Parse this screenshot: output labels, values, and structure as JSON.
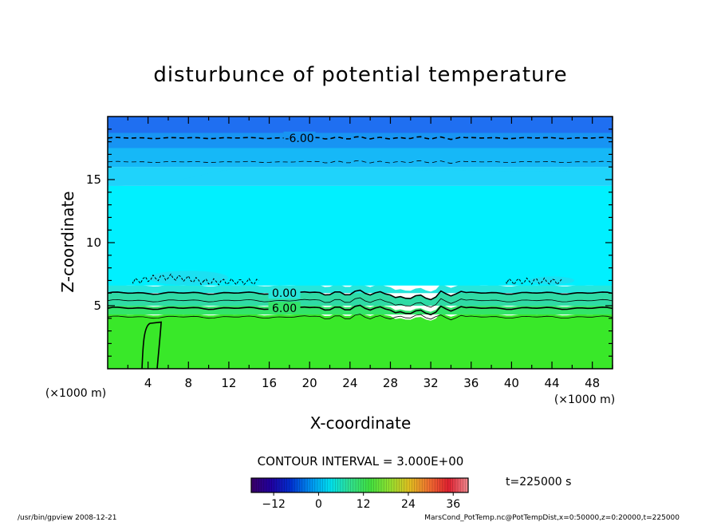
{
  "chart_data": {
    "type": "heatmap",
    "title": "disturbunce of potential temperature",
    "xlabel": "X-coordinate",
    "ylabel": "Z-coordinate",
    "x_unit_left": "(×1000 m)",
    "x_unit_right": "(×1000 m)",
    "xlim": [
      0,
      50
    ],
    "ylim": [
      0,
      20
    ],
    "x_ticks": [
      4,
      8,
      12,
      16,
      20,
      24,
      28,
      32,
      36,
      40,
      44,
      48
    ],
    "y_ticks": [
      5,
      10,
      15
    ],
    "x_tick_labels": [
      "4",
      "8",
      "12",
      "16",
      "20",
      "24",
      "28",
      "32",
      "36",
      "40",
      "44",
      "48"
    ],
    "y_tick_labels": [
      "5",
      "10",
      "15"
    ],
    "layers": [
      {
        "z_bottom": 0,
        "z_top": 4.3,
        "color": "#39e829"
      },
      {
        "z_bottom": 4.3,
        "z_top": 5.0,
        "color": "#33e46a"
      },
      {
        "z_bottom": 5.0,
        "z_top": 6.0,
        "color": "#2fdba5"
      },
      {
        "z_bottom": 6.0,
        "z_top": 6.6,
        "color": "#26e6dc"
      },
      {
        "z_bottom": 6.6,
        "z_top": 14.5,
        "color": "#00f0ff"
      },
      {
        "z_bottom": 14.5,
        "z_top": 16.0,
        "color": "#1fd3fb"
      },
      {
        "z_bottom": 16.0,
        "z_top": 17.5,
        "color": "#16b8f7"
      },
      {
        "z_bottom": 17.5,
        "z_top": 18.7,
        "color": "#1794f3"
      },
      {
        "z_bottom": 18.7,
        "z_top": 20.0,
        "color": "#1f6ff1"
      }
    ],
    "contours": [
      {
        "level": -6.0,
        "label": "-6.00",
        "z": 18.3,
        "style": "dashed",
        "label_x": 19
      },
      {
        "level": -3.0,
        "label": "",
        "z": 16.4,
        "style": "dashed",
        "label_x": null
      },
      {
        "level": 0.0,
        "label": "0.00",
        "z": 6.0,
        "style": "solid",
        "label_x": 17.5
      },
      {
        "level": 3.0,
        "label": "",
        "z": 5.4,
        "style": "solid",
        "label_x": null
      },
      {
        "level": 6.0,
        "label": "6.00",
        "z": 4.8,
        "style": "solid",
        "label_x": 17.5
      },
      {
        "level": 9.0,
        "label": "",
        "z": 4.1,
        "style": "solid",
        "label_x": null
      }
    ],
    "contour_interval_label": "CONTOUR INTERVAL = 3.000E+00",
    "colorbar": {
      "min": -18,
      "max": 40,
      "tick_values": [
        -12,
        0,
        12,
        24,
        36
      ],
      "tick_labels": [
        "−12",
        "0",
        "12",
        "24",
        "36"
      ],
      "stops": [
        "#3a0066",
        "#2000a0",
        "#0030d0",
        "#0090f0",
        "#00e0f0",
        "#30e090",
        "#40e040",
        "#90e030",
        "#e0c020",
        "#f07030",
        "#e02030",
        "#f08a90"
      ]
    },
    "time_label": "t=225000 s"
  },
  "footer": {
    "left": "/usr/bin/gpview   2008-12-21",
    "right": "MarsCond_PotTemp.nc@PotTempDist,x=0:50000,z=0:20000,t=225000"
  }
}
